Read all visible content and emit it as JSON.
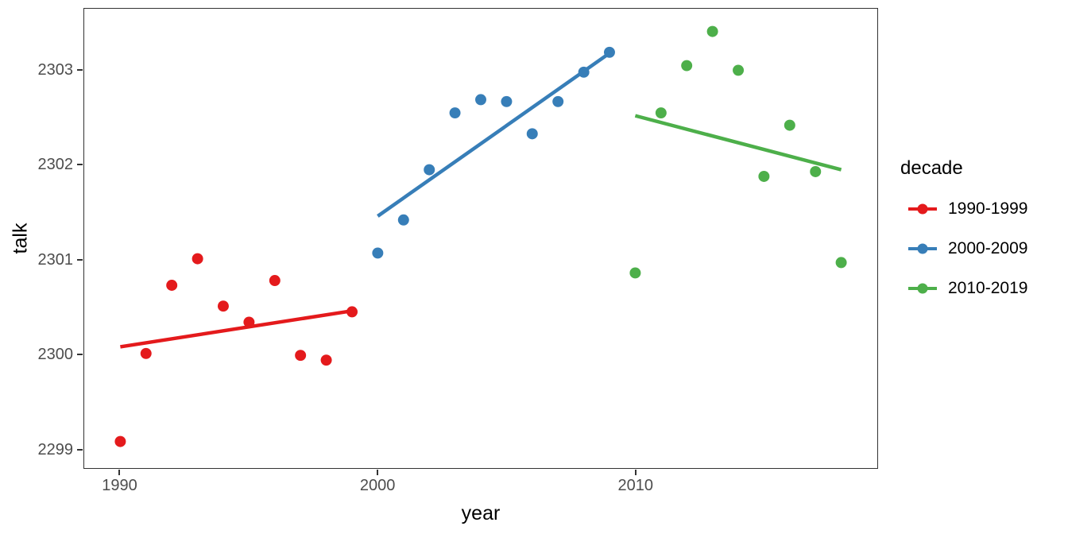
{
  "chart_data": {
    "type": "scatter",
    "title": "",
    "xlabel": "year",
    "ylabel": "talk",
    "legend_title": "decade",
    "legend_position": "right",
    "grid": false,
    "xlim": [
      1988.6,
      2019.4
    ],
    "ylim": [
      2298.8,
      2303.65
    ],
    "x_ticks": [
      1990,
      2000,
      2010
    ],
    "y_ticks": [
      2299,
      2300,
      2301,
      2302,
      2303
    ],
    "series": [
      {
        "name": "1990-1999",
        "color": "#E41A1C",
        "points": [
          [
            1990,
            2299.08
          ],
          [
            1991,
            2300.01
          ],
          [
            1992,
            2300.73
          ],
          [
            1993,
            2301.01
          ],
          [
            1994,
            2300.51
          ],
          [
            1995,
            2300.34
          ],
          [
            1996,
            2300.78
          ],
          [
            1997,
            2299.99
          ],
          [
            1998,
            2299.94
          ],
          [
            1999,
            2300.45
          ]
        ],
        "trend": [
          [
            1990,
            2300.08
          ],
          [
            1999,
            2300.46
          ]
        ]
      },
      {
        "name": "2000-2009",
        "color": "#377EB8",
        "points": [
          [
            2000,
            2301.07
          ],
          [
            2001,
            2301.42
          ],
          [
            2002,
            2301.95
          ],
          [
            2003,
            2302.55
          ],
          [
            2004,
            2302.69
          ],
          [
            2005,
            2302.67
          ],
          [
            2006,
            2302.33
          ],
          [
            2007,
            2302.67
          ],
          [
            2008,
            2302.98
          ],
          [
            2009,
            2303.19
          ]
        ],
        "trend": [
          [
            2000,
            2301.46
          ],
          [
            2009,
            2303.18
          ]
        ]
      },
      {
        "name": "2010-2019",
        "color": "#4DAF4A",
        "points": [
          [
            2010,
            2300.86
          ],
          [
            2011,
            2302.55
          ],
          [
            2012,
            2303.05
          ],
          [
            2013,
            2303.41
          ],
          [
            2014,
            2303.0
          ],
          [
            2015,
            2301.88
          ],
          [
            2016,
            2302.42
          ],
          [
            2017,
            2301.93
          ],
          [
            2018,
            2300.97
          ]
        ],
        "trend": [
          [
            2010,
            2302.52
          ],
          [
            2018,
            2301.95
          ]
        ]
      }
    ]
  }
}
